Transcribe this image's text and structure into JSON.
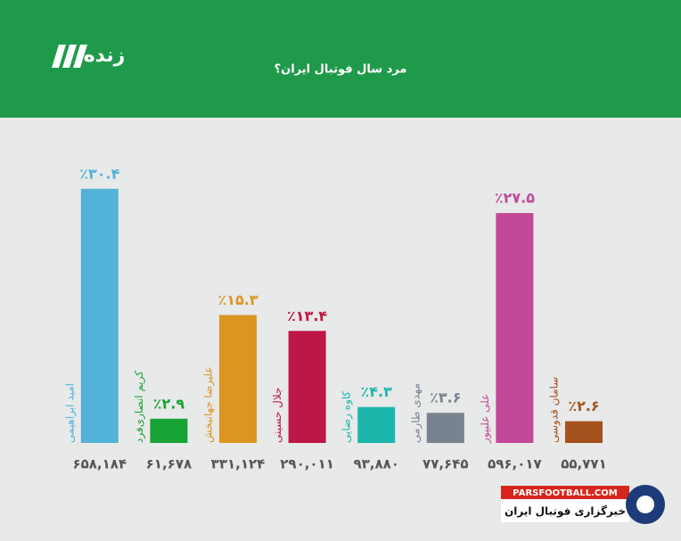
{
  "logo_text": "زنده",
  "chart_data": {
    "type": "bar",
    "title": "مرد سال فوتبال ایران؟",
    "categories": [
      "امید ابراهیمی",
      "کریم انصاری‌فرد",
      "علیرضا جهانبخش",
      "جلال حسینی",
      "کاوه رضایی",
      "مهدی طارمی",
      "علی علیپور",
      "سامان قدوسی"
    ],
    "values": [
      30.4,
      2.9,
      15.3,
      13.4,
      4.3,
      3.6,
      27.5,
      2.6
    ],
    "value_labels": [
      "٪۳۰.۴",
      "٪۲.۹",
      "٪۱۵.۳",
      "٪۱۳.۴",
      "٪۴.۳",
      "٪۳.۶",
      "٪۲۷.۵",
      "٪۲.۶"
    ],
    "votes": [
      {
        "value": 658184,
        "label": "۶۵۸,۱۸۴"
      },
      {
        "value": 61678,
        "label": "۶۱,۶۷۸"
      },
      {
        "value": 331124,
        "label": "۳۳۱,۱۲۴"
      },
      {
        "value": 290011,
        "label": "۲۹۰,۰۱۱"
      },
      {
        "value": 93880,
        "label": "۹۳,۸۸۰"
      },
      {
        "value": 77645,
        "label": "۷۷,۶۴۵"
      },
      {
        "value": 596017,
        "label": "۵۹۶,۰۱۷"
      },
      {
        "value": 55771,
        "label": "۵۵,۷۷۱"
      }
    ],
    "colors": [
      "#52b2d8",
      "#17a334",
      "#dc9520",
      "#bd1745",
      "#1cb6ad",
      "#78838f",
      "#c2489a",
      "#a5521c"
    ]
  },
  "watermark": {
    "site": "PARSFOOTBALL.COM",
    "tagline": "خبرگزاری فوتبال ایران"
  }
}
